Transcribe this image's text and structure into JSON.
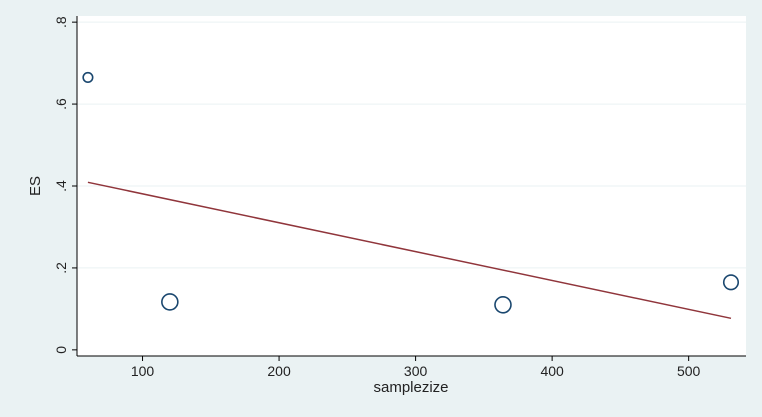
{
  "chart_data": {
    "type": "scatter",
    "title": "",
    "xlabel": "samplezize",
    "ylabel": "ES",
    "xlim": [
      52,
      542
    ],
    "ylim": [
      -0.015,
      0.815
    ],
    "xticks": [
      100,
      200,
      300,
      400,
      500
    ],
    "xtick_labels": [
      "100",
      "200",
      "300",
      "400",
      "500"
    ],
    "yticks": [
      0,
      0.2,
      0.4,
      0.6,
      0.8
    ],
    "ytick_labels": [
      "0",
      ".2",
      ".4",
      ".6",
      ".8"
    ],
    "grid": "horizontal",
    "legend": "none",
    "points": [
      {
        "x": 60,
        "y": 0.665,
        "weight": 0.35
      },
      {
        "x": 120,
        "y": 0.117,
        "weight": 1.0
      },
      {
        "x": 364,
        "y": 0.11,
        "weight": 1.0
      },
      {
        "x": 531,
        "y": 0.165,
        "weight": 0.85
      }
    ],
    "fit_line": {
      "x": [
        60,
        531
      ],
      "y": [
        0.409,
        0.077
      ]
    }
  },
  "colors": {
    "background": "#eaf2f3",
    "plot_background": "#ffffff",
    "marker": "#1a476f",
    "fit_line": "#90353b",
    "grid": "#eaf2f3"
  }
}
